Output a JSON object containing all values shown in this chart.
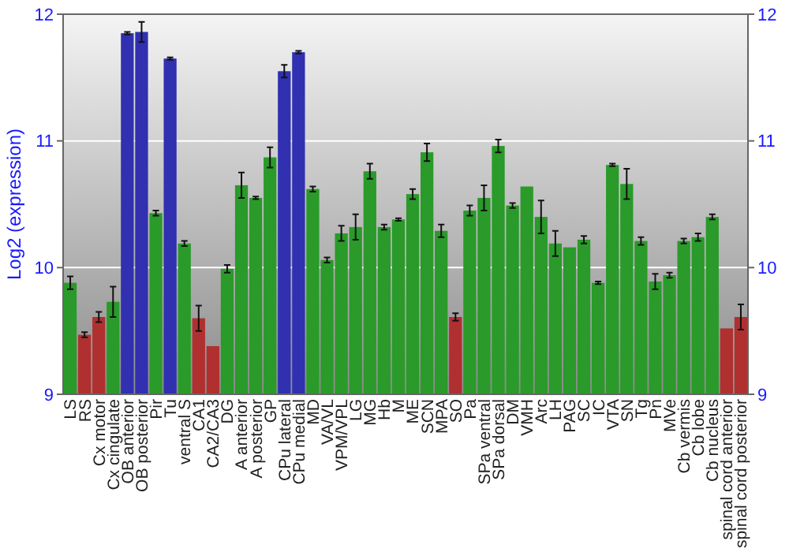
{
  "chart_data": {
    "type": "bar",
    "ylabel": "Log2 (expression)",
    "categories": [
      "LS",
      "RS",
      "Cx motor",
      "Cx cingulate",
      "OB anterior",
      "OB posterior",
      "Pir",
      "Tu",
      "ventral S",
      "CA1",
      "CA2/CA3",
      "DG",
      "A anterior",
      "A posterior",
      "GP",
      "CPu lateral",
      "CPu medial",
      "MD",
      "VA/VL",
      "VPM/VPL",
      "LG",
      "MG",
      "Hb",
      "M",
      "ME",
      "SCN",
      "MPA",
      "SO",
      "Pa",
      "SPa ventral",
      "SPa dorsal",
      "DM",
      "VMH",
      "Arc",
      "LH",
      "PAG",
      "SC",
      "IC",
      "VTA",
      "SN",
      "Tg",
      "Pn",
      "MVe",
      "Cb vermis",
      "Cb lobe",
      "Cb nucleus",
      "spinal cord anterior",
      "spinal cord posterior"
    ],
    "values": [
      9.88,
      9.47,
      9.61,
      9.73,
      11.85,
      11.86,
      10.43,
      11.65,
      10.19,
      9.6,
      9.38,
      9.99,
      10.65,
      10.55,
      10.87,
      11.55,
      11.7,
      10.62,
      10.06,
      10.27,
      10.32,
      10.76,
      10.32,
      10.38,
      10.58,
      10.91,
      10.29,
      9.61,
      10.45,
      10.55,
      10.96,
      10.49,
      10.64,
      10.4,
      10.19,
      10.16,
      10.22,
      9.88,
      10.81,
      10.66,
      10.21,
      9.89,
      9.94,
      10.21,
      10.24,
      10.4,
      9.52,
      9.61
    ],
    "errors": [
      0.05,
      0.02,
      0.04,
      0.12,
      0.01,
      0.08,
      0.02,
      0.01,
      0.02,
      0.1,
      null,
      0.03,
      0.1,
      0.01,
      0.08,
      0.05,
      0.01,
      0.02,
      0.02,
      0.06,
      0.1,
      0.06,
      0.02,
      0.01,
      0.04,
      0.07,
      0.05,
      0.03,
      0.04,
      0.1,
      0.05,
      0.02,
      null,
      0.13,
      0.1,
      null,
      0.03,
      0.01,
      0.01,
      0.12,
      0.03,
      0.06,
      0.02,
      0.02,
      0.03,
      0.02,
      null,
      0.1
    ],
    "colors": [
      "#2a9a2a",
      "#b03030",
      "#b03030",
      "#2a9a2a",
      "#3030b0",
      "#3030b0",
      "#2a9a2a",
      "#3030b0",
      "#2a9a2a",
      "#b03030",
      "#b03030",
      "#2a9a2a",
      "#2a9a2a",
      "#2a9a2a",
      "#2a9a2a",
      "#3030b0",
      "#3030b0",
      "#2a9a2a",
      "#2a9a2a",
      "#2a9a2a",
      "#2a9a2a",
      "#2a9a2a",
      "#2a9a2a",
      "#2a9a2a",
      "#2a9a2a",
      "#2a9a2a",
      "#2a9a2a",
      "#b03030",
      "#2a9a2a",
      "#2a9a2a",
      "#2a9a2a",
      "#2a9a2a",
      "#2a9a2a",
      "#2a9a2a",
      "#2a9a2a",
      "#2a9a2a",
      "#2a9a2a",
      "#2a9a2a",
      "#2a9a2a",
      "#2a9a2a",
      "#2a9a2a",
      "#2a9a2a",
      "#2a9a2a",
      "#2a9a2a",
      "#2a9a2a",
      "#2a9a2a",
      "#b03030",
      "#b03030"
    ],
    "ylim": [
      9,
      12
    ],
    "yticks": [
      9,
      10,
      11,
      12
    ],
    "y2lim": [
      9,
      12
    ],
    "y2ticks": [
      9,
      10,
      11,
      12
    ],
    "grid": "y"
  }
}
